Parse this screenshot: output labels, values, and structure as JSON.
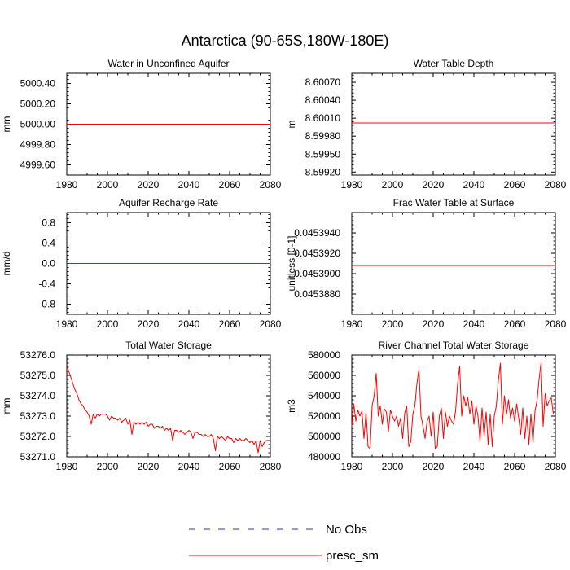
{
  "figure_title": "Antarctica (90-65S,180W-180E)",
  "legend": {
    "items": [
      {
        "label": "No Obs",
        "color": "#2b2bff",
        "dash": true
      },
      {
        "label": "presc_sm",
        "color": "#ff0000",
        "dash": false
      }
    ]
  },
  "chart_data": [
    {
      "type": "line",
      "title": "Water in Unconfined Aquifer",
      "ylabel": "mm",
      "xlim": [
        1980,
        2080
      ],
      "ylim": [
        4999.5,
        5000.5
      ],
      "xticks": [
        1980,
        2000,
        2020,
        2040,
        2060,
        2080
      ],
      "yticks": [
        4999.6,
        4999.8,
        5000.0,
        5000.2,
        5000.4
      ],
      "ytick_labels": [
        "4999.60",
        "4999.80",
        "5000.00",
        "5000.20",
        "5000.40"
      ],
      "series": [
        {
          "name": "presc_sm",
          "color": "#ff0000",
          "x": [
            1980,
            2080
          ],
          "values": [
            5000.0,
            5000.0
          ]
        }
      ]
    },
    {
      "type": "line",
      "title": "Water Table Depth",
      "ylabel": "m",
      "xlim": [
        1980,
        2080
      ],
      "ylim": [
        8.59915,
        8.60085
      ],
      "xticks": [
        1980,
        2000,
        2020,
        2040,
        2060,
        2080
      ],
      "yticks": [
        8.5992,
        8.5995,
        8.5998,
        8.6001,
        8.6004,
        8.6007
      ],
      "ytick_labels": [
        "8.59920",
        "8.59950",
        "8.59980",
        "8.60010",
        "8.60040",
        "8.60070"
      ],
      "series": [
        {
          "name": "presc_sm",
          "color": "#ff0000",
          "x": [
            1980,
            2080
          ],
          "values": [
            8.60002,
            8.60002
          ]
        }
      ]
    },
    {
      "type": "line",
      "title": "Aquifer Recharge Rate",
      "ylabel": "mm/d",
      "xlim": [
        1980,
        2080
      ],
      "ylim": [
        -1.0,
        1.0
      ],
      "xticks": [
        1980,
        2000,
        2020,
        2040,
        2060,
        2080
      ],
      "yticks": [
        -0.8,
        -0.4,
        0.0,
        0.4,
        0.8
      ],
      "ytick_labels": [
        "-0.8",
        "-0.4",
        "0.0",
        "0.4",
        "0.8"
      ],
      "series": [
        {
          "name": "presc_sm",
          "color": "#ff0000",
          "x": [
            1980,
            2080
          ],
          "values": [
            0.0,
            0.0
          ]
        }
      ]
    },
    {
      "type": "line",
      "title": "Frac Water Table at Surface",
      "ylabel": "unitless [0-1]",
      "xlim": [
        1980,
        2080
      ],
      "ylim": [
        0.045386,
        0.045396
      ],
      "xticks": [
        1980,
        2000,
        2020,
        2040,
        2060,
        2080
      ],
      "yticks": [
        0.045388,
        0.04539,
        0.045392,
        0.045394
      ],
      "ytick_labels": [
        "0.0453880",
        "0.0453900",
        "0.0453920",
        "0.0453940"
      ],
      "series": [
        {
          "name": "presc_sm",
          "color": "#ff0000",
          "x": [
            1980,
            2080
          ],
          "values": [
            0.0453908,
            0.0453908
          ]
        }
      ]
    },
    {
      "type": "line",
      "title": "Total Water Storage",
      "ylabel": "mm",
      "xlim": [
        1980,
        2080
      ],
      "ylim": [
        53271.0,
        53276.0
      ],
      "xticks": [
        1980,
        2000,
        2020,
        2040,
        2060,
        2080
      ],
      "yticks": [
        53271.0,
        53272.0,
        53273.0,
        53274.0,
        53275.0,
        53276.0
      ],
      "ytick_labels": [
        "53271.0",
        "53272.0",
        "53273.0",
        "53274.0",
        "53275.0",
        "53276.0"
      ],
      "series": [
        {
          "name": "presc_sm",
          "color": "#ff0000",
          "x": [
            1980,
            1981,
            1982,
            1983,
            1984,
            1985,
            1986,
            1987,
            1988,
            1989,
            1990,
            1991,
            1992,
            1993,
            1994,
            1995,
            1996,
            1997,
            1998,
            1999,
            2000,
            2001,
            2002,
            2003,
            2004,
            2005,
            2006,
            2007,
            2008,
            2009,
            2010,
            2011,
            2012,
            2013,
            2014,
            2015,
            2016,
            2017,
            2018,
            2019,
            2020,
            2021,
            2022,
            2023,
            2024,
            2025,
            2026,
            2027,
            2028,
            2029,
            2030,
            2031,
            2032,
            2033,
            2034,
            2035,
            2036,
            2037,
            2038,
            2039,
            2040,
            2041,
            2042,
            2043,
            2044,
            2045,
            2046,
            2047,
            2048,
            2049,
            2050,
            2051,
            2052,
            2053,
            2054,
            2055,
            2056,
            2057,
            2058,
            2059,
            2060,
            2061,
            2062,
            2063,
            2064,
            2065,
            2066,
            2067,
            2068,
            2069,
            2070,
            2071,
            2072,
            2073,
            2074,
            2075,
            2076,
            2077,
            2078,
            2079
          ],
          "values": [
            53275.5,
            53275.2,
            53274.9,
            53274.6,
            53274.3,
            53274.1,
            53273.8,
            53273.6,
            53273.5,
            53273.3,
            53273.2,
            53273.0,
            53272.6,
            53273.1,
            53272.9,
            53273.1,
            53273.0,
            53273.1,
            53273.1,
            53273.1,
            53273.0,
            53272.8,
            53273.0,
            53272.9,
            53272.9,
            53272.8,
            53272.9,
            53272.7,
            53272.8,
            53272.9,
            53272.6,
            53272.8,
            53272.1,
            53272.7,
            53272.6,
            53272.7,
            53272.6,
            53272.7,
            53272.6,
            53272.7,
            53272.5,
            53272.6,
            53272.6,
            53272.4,
            53272.5,
            53272.5,
            53272.4,
            53272.5,
            53272.3,
            53272.4,
            53272.3,
            53272.4,
            53271.8,
            53272.3,
            53272.3,
            53272.2,
            53272.3,
            53272.2,
            53272.1,
            53272.2,
            53272.3,
            53272.2,
            53271.9,
            53272.2,
            53272.2,
            53272.1,
            53272.1,
            53272.0,
            53272.1,
            53272.0,
            53272.0,
            53272.1,
            53271.9,
            53271.3,
            53272.0,
            53271.9,
            53272.0,
            53271.9,
            53271.8,
            53272.0,
            53271.9,
            53271.9,
            53271.7,
            53271.9,
            53271.8,
            53271.9,
            53271.8,
            53271.8,
            53271.9,
            53271.8,
            53271.7,
            53271.8,
            53271.6,
            53271.8,
            53271.2,
            53271.8,
            53271.5,
            53271.7,
            53271.8,
            53271.8
          ]
        }
      ]
    },
    {
      "type": "line",
      "title": "River Channel Total Water Storage",
      "ylabel": "m3",
      "xlim": [
        1980,
        2080
      ],
      "ylim": [
        480000,
        580000
      ],
      "xticks": [
        1980,
        2000,
        2020,
        2040,
        2060,
        2080
      ],
      "yticks": [
        480000,
        500000,
        520000,
        540000,
        560000,
        580000
      ],
      "ytick_labels": [
        "480000",
        "500000",
        "520000",
        "540000",
        "560000",
        "580000"
      ],
      "series": [
        {
          "name": "presc_sm",
          "color": "#ff0000",
          "x": [
            1980,
            1981,
            1982,
            1983,
            1984,
            1985,
            1986,
            1987,
            1988,
            1989,
            1990,
            1991,
            1992,
            1993,
            1994,
            1995,
            1996,
            1997,
            1998,
            1999,
            2000,
            2001,
            2002,
            2003,
            2004,
            2005,
            2006,
            2007,
            2008,
            2009,
            2010,
            2011,
            2012,
            2013,
            2014,
            2015,
            2016,
            2017,
            2018,
            2019,
            2020,
            2021,
            2022,
            2023,
            2024,
            2025,
            2026,
            2027,
            2028,
            2029,
            2030,
            2031,
            2032,
            2033,
            2034,
            2035,
            2036,
            2037,
            2038,
            2039,
            2040,
            2041,
            2042,
            2043,
            2044,
            2045,
            2046,
            2047,
            2048,
            2049,
            2050,
            2051,
            2052,
            2053,
            2054,
            2055,
            2056,
            2057,
            2058,
            2059,
            2060,
            2061,
            2062,
            2063,
            2064,
            2065,
            2066,
            2067,
            2068,
            2069,
            2070,
            2071,
            2072,
            2073,
            2074,
            2075,
            2076,
            2077,
            2078,
            2079
          ],
          "values": [
            510000,
            532000,
            515000,
            526000,
            520000,
            525000,
            498000,
            524000,
            490000,
            488000,
            530000,
            540000,
            562000,
            520000,
            530000,
            512000,
            527000,
            524000,
            505000,
            526000,
            520000,
            515000,
            520000,
            510000,
            518000,
            498000,
            523000,
            530000,
            490000,
            495000,
            522000,
            530000,
            552000,
            566000,
            520000,
            510000,
            498000,
            515000,
            520000,
            500000,
            524000,
            488000,
            490000,
            520000,
            528000,
            498000,
            524000,
            510000,
            520000,
            515000,
            512000,
            525000,
            552000,
            569000,
            520000,
            540000,
            530000,
            538000,
            522000,
            535000,
            512000,
            530000,
            520000,
            495000,
            528000,
            500000,
            524000,
            492000,
            522000,
            490000,
            520000,
            530000,
            555000,
            572000,
            512000,
            540000,
            522000,
            536000,
            518000,
            528000,
            515000,
            532000,
            518000,
            502000,
            528000,
            498000,
            520000,
            492000,
            522000,
            494000,
            525000,
            535000,
            556000,
            573000,
            510000,
            542000,
            530000,
            535000,
            538000,
            522000
          ]
        }
      ]
    }
  ]
}
